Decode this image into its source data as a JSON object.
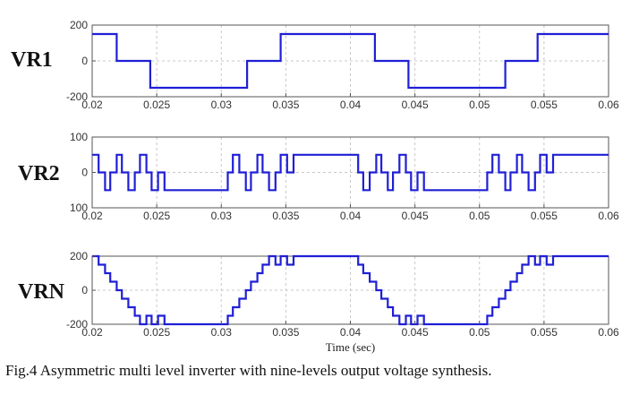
{
  "caption": "Fig.4 Asymmetric multi level inverter with nine-levels output voltage synthesis.",
  "line_color": "#1f1fd6",
  "chart_data": [
    {
      "type": "line",
      "panel_label": "VR1",
      "xlim": [
        0.02,
        0.06
      ],
      "ylim": [
        -200,
        200
      ],
      "x_ticks": [
        "0.02",
        "0.025",
        "0.03",
        "0.035",
        "0.04",
        "0.045",
        "0.05",
        "0.055",
        "0.06"
      ],
      "x_tick_values": [
        0.02,
        0.025,
        0.03,
        0.035,
        0.04,
        0.045,
        0.05,
        0.055,
        0.06
      ],
      "y_ticks": [
        "-200",
        "0",
        "200"
      ],
      "y_tick_values": [
        -200,
        0,
        200
      ],
      "grid": true,
      "xlabel": "",
      "series": [
        {
          "x": [
            0.02,
            0.0219,
            0.0219,
            0.0245,
            0.0245,
            0.032,
            0.032,
            0.0346,
            0.0346,
            0.0419,
            0.0419,
            0.0445,
            0.0445,
            0.052,
            0.052,
            0.0545,
            0.0545,
            0.06
          ],
          "y": [
            150,
            150,
            0,
            0,
            -150,
            -150,
            0,
            0,
            150,
            150,
            0,
            0,
            -150,
            -150,
            0,
            0,
            150,
            150
          ]
        }
      ]
    },
    {
      "type": "line",
      "panel_label": "VR2",
      "xlim": [
        0.02,
        0.06
      ],
      "ylim": [
        -100,
        100
      ],
      "x_ticks": [
        "0.02",
        "0.025",
        "0.03",
        "0.035",
        "0.04",
        "0.045",
        "0.05",
        "0.055",
        "0.06"
      ],
      "x_tick_values": [
        0.02,
        0.025,
        0.03,
        0.035,
        0.04,
        0.045,
        0.05,
        0.055,
        0.06
      ],
      "y_ticks": [
        "100",
        "0",
        "100"
      ],
      "y_tick_values": [
        100,
        0,
        -100
      ],
      "grid": true,
      "xlabel": "",
      "series": [
        {
          "x": [
            0.02,
            0.0205,
            0.0205,
            0.021,
            0.021,
            0.0214,
            0.0214,
            0.0219,
            0.0219,
            0.0223,
            0.0223,
            0.0228,
            0.0228,
            0.0233,
            0.0233,
            0.0237,
            0.0237,
            0.0242,
            0.0242,
            0.0246,
            0.0246,
            0.0251,
            0.0251,
            0.0256,
            0.0256,
            0.0305,
            0.0305,
            0.0309,
            0.0309,
            0.0314,
            0.0314,
            0.0319,
            0.0319,
            0.0323,
            0.0323,
            0.0328,
            0.0328,
            0.0332,
            0.0332,
            0.0337,
            0.0337,
            0.0342,
            0.0342,
            0.0346,
            0.0346,
            0.0351,
            0.0351,
            0.0356,
            0.0356,
            0.0406,
            0.0406,
            0.041,
            0.041,
            0.0415,
            0.0415,
            0.042,
            0.042,
            0.0424,
            0.0424,
            0.0429,
            0.0429,
            0.0433,
            0.0433,
            0.0438,
            0.0438,
            0.0443,
            0.0443,
            0.0447,
            0.0447,
            0.0452,
            0.0452,
            0.0457,
            0.0457,
            0.0506,
            0.0506,
            0.051,
            0.051,
            0.0515,
            0.0515,
            0.052,
            0.052,
            0.0524,
            0.0524,
            0.0529,
            0.0529,
            0.0533,
            0.0533,
            0.0538,
            0.0538,
            0.0543,
            0.0543,
            0.0547,
            0.0547,
            0.0552,
            0.0552,
            0.0557,
            0.0557,
            0.06
          ],
          "y": [
            50,
            50,
            0,
            0,
            -50,
            -50,
            0,
            0,
            50,
            50,
            0,
            0,
            -50,
            -50,
            0,
            0,
            50,
            50,
            0,
            0,
            -50,
            -50,
            0,
            0,
            -50,
            -50,
            0,
            0,
            50,
            50,
            0,
            0,
            -50,
            -50,
            0,
            0,
            50,
            50,
            0,
            0,
            -50,
            -50,
            0,
            0,
            50,
            50,
            0,
            0,
            50,
            50,
            0,
            0,
            -50,
            -50,
            0,
            0,
            50,
            50,
            0,
            0,
            -50,
            -50,
            0,
            0,
            50,
            50,
            0,
            0,
            -50,
            -50,
            0,
            0,
            -50,
            -50,
            0,
            0,
            50,
            50,
            0,
            0,
            -50,
            -50,
            0,
            0,
            50,
            50,
            0,
            0,
            -50,
            -50,
            0,
            0,
            50,
            50,
            0,
            0,
            50,
            50
          ]
        }
      ]
    },
    {
      "type": "line",
      "panel_label": "VRN",
      "xlim": [
        0.02,
        0.06
      ],
      "ylim": [
        -200,
        200
      ],
      "x_ticks": [
        "0.02",
        "0.025",
        "0.03",
        "0.035",
        "0.04",
        "0.045",
        "0.05",
        "0.055",
        "0.06"
      ],
      "x_tick_values": [
        0.02,
        0.025,
        0.03,
        0.035,
        0.04,
        0.045,
        0.05,
        0.055,
        0.06
      ],
      "y_ticks": [
        "200",
        "0",
        "-200"
      ],
      "y_tick_values": [
        200,
        0,
        -200
      ],
      "grid": true,
      "xlabel": "Time (sec)",
      "series": [
        {
          "x": [
            0.02,
            0.0205,
            0.0205,
            0.021,
            0.021,
            0.0214,
            0.0214,
            0.0219,
            0.0219,
            0.0223,
            0.0223,
            0.0228,
            0.0228,
            0.0233,
            0.0233,
            0.0237,
            0.0237,
            0.0242,
            0.0242,
            0.0246,
            0.0246,
            0.0251,
            0.0251,
            0.0256,
            0.0256,
            0.026,
            0.026,
            0.0305,
            0.0305,
            0.0309,
            0.0309,
            0.0314,
            0.0314,
            0.0319,
            0.0319,
            0.0323,
            0.0323,
            0.0328,
            0.0328,
            0.0332,
            0.0332,
            0.0337,
            0.0337,
            0.0342,
            0.0342,
            0.0346,
            0.0346,
            0.0351,
            0.0351,
            0.0356,
            0.0356,
            0.036,
            0.036,
            0.0406,
            0.0406,
            0.041,
            0.041,
            0.0415,
            0.0415,
            0.042,
            0.042,
            0.0424,
            0.0424,
            0.0429,
            0.0429,
            0.0433,
            0.0433,
            0.0438,
            0.0438,
            0.0443,
            0.0443,
            0.0447,
            0.0447,
            0.0452,
            0.0452,
            0.0457,
            0.0457,
            0.0461,
            0.0461,
            0.0506,
            0.0506,
            0.051,
            0.051,
            0.0515,
            0.0515,
            0.052,
            0.052,
            0.0524,
            0.0524,
            0.0529,
            0.0529,
            0.0533,
            0.0533,
            0.0538,
            0.0538,
            0.0543,
            0.0543,
            0.0547,
            0.0547,
            0.0552,
            0.0552,
            0.0557,
            0.0557,
            0.0561,
            0.0561,
            0.06
          ],
          "y": [
            200,
            200,
            150,
            150,
            100,
            100,
            50,
            50,
            0,
            0,
            -50,
            -50,
            -100,
            -100,
            -150,
            -150,
            -200,
            -200,
            -150,
            -150,
            -200,
            -200,
            -150,
            -150,
            -200,
            -200,
            -200,
            -200,
            -150,
            -150,
            -100,
            -100,
            -50,
            -50,
            0,
            0,
            50,
            50,
            100,
            100,
            150,
            150,
            200,
            200,
            150,
            150,
            200,
            200,
            150,
            150,
            200,
            200,
            200,
            200,
            150,
            150,
            100,
            100,
            50,
            50,
            0,
            0,
            -50,
            -50,
            -100,
            -100,
            -150,
            -150,
            -200,
            -200,
            -150,
            -150,
            -200,
            -200,
            -150,
            -150,
            -200,
            -200,
            -200,
            -200,
            -150,
            -150,
            -100,
            -100,
            -50,
            -50,
            0,
            0,
            50,
            50,
            100,
            100,
            150,
            150,
            200,
            200,
            150,
            150,
            200,
            200,
            150,
            150,
            200,
            200,
            200,
            200
          ]
        }
      ]
    }
  ]
}
